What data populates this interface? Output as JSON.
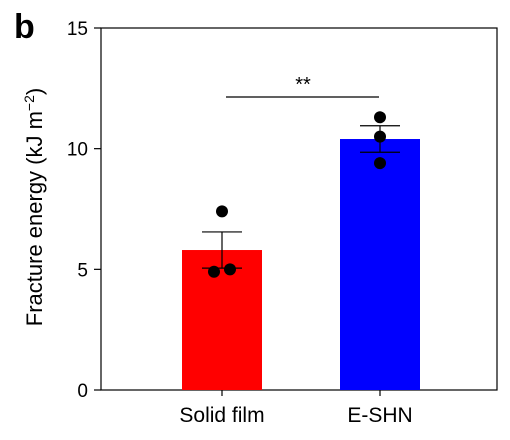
{
  "panel_label": "b",
  "chart_data": {
    "type": "bar",
    "categories": [
      "Solid film",
      "E-SHN"
    ],
    "values": [
      5.8,
      10.4
    ],
    "errors": [
      0.75,
      0.55
    ],
    "points": [
      [
        7.4,
        4.9,
        5.0
      ],
      [
        11.3,
        10.5,
        9.4
      ]
    ],
    "colors": [
      "#ff0000",
      "#0000ff"
    ],
    "ylabel_main": "Fracture energy (kJ m",
    "ylabel_sup": "−2",
    "ylabel_close": ")",
    "xlabel": "",
    "ylim": [
      0,
      15
    ],
    "yticks": [
      0,
      5,
      10,
      15
    ],
    "significance": "**",
    "grid": false,
    "legend": "none"
  }
}
